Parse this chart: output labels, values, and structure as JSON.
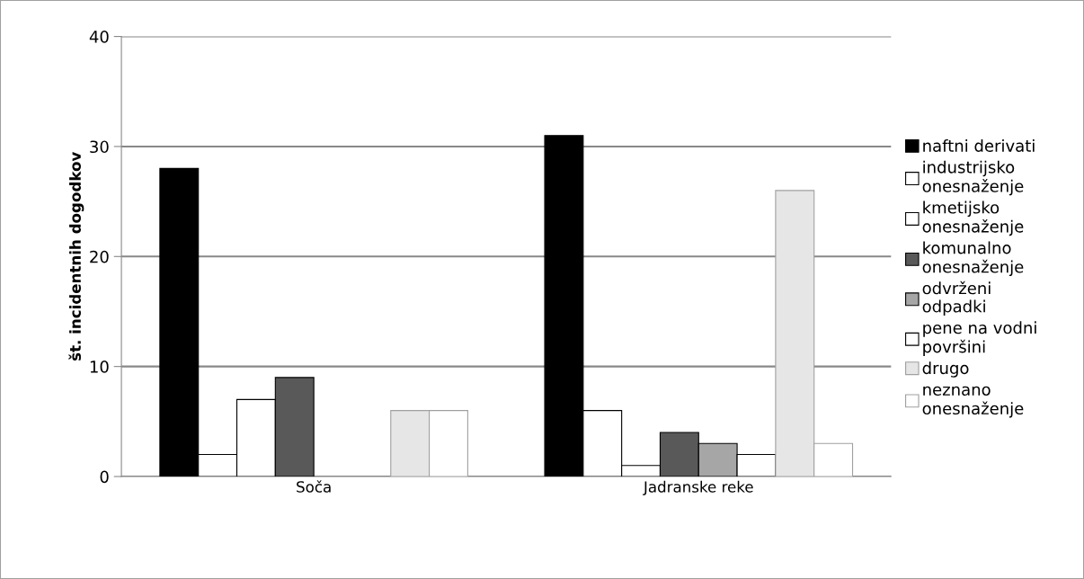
{
  "chart_data": {
    "type": "bar",
    "ylabel": "št. incidentnih dogodkov",
    "categories": [
      "Soča",
      "Jadranske reke"
    ],
    "series": [
      {
        "name": "naftni derivati",
        "color": "#000000",
        "values": [
          28,
          31
        ]
      },
      {
        "name": "industrijsko onesnaženje",
        "color": "#ffffff",
        "values": [
          2,
          6
        ]
      },
      {
        "name": "kmetijsko onesnaženje",
        "color": "#ffffff",
        "values": [
          7,
          1
        ]
      },
      {
        "name": "komunalno onesnaženje",
        "color": "#595959",
        "values": [
          9,
          4
        ]
      },
      {
        "name": "odvrženi odpadki",
        "color": "#a6a6a6",
        "values": [
          0,
          3
        ]
      },
      {
        "name": "pene na vodni površini",
        "color": "#ffffff",
        "values": [
          0,
          2
        ]
      },
      {
        "name": "drugo",
        "color": "#e6e6e6",
        "values": [
          6,
          26
        ]
      },
      {
        "name": "neznano onesnaženje",
        "color": "#ffffff",
        "values": [
          6,
          3
        ]
      }
    ],
    "ylim": [
      0,
      40
    ],
    "yticks": [
      0,
      10,
      20,
      30,
      40
    ],
    "grid": "y",
    "legend": "right"
  }
}
